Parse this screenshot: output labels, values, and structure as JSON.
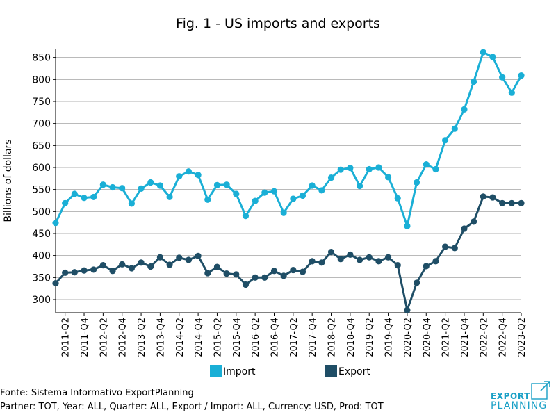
{
  "chart_data": {
    "type": "line",
    "title": "Fig. 1 - US imports and exports",
    "xlabel": "",
    "ylabel": "Billions of dollars",
    "ylim": [
      270,
      870
    ],
    "yticks": [
      300,
      350,
      400,
      450,
      500,
      550,
      600,
      650,
      700,
      750,
      800,
      850
    ],
    "grid": "horizontal",
    "legend_position": "bottom-center",
    "categories": [
      "2011-Q1",
      "2011-Q2",
      "2011-Q3",
      "2011-Q4",
      "2012-Q1",
      "2012-Q2",
      "2012-Q3",
      "2012-Q4",
      "2013-Q1",
      "2013-Q2",
      "2013-Q3",
      "2013-Q4",
      "2014-Q1",
      "2014-Q2",
      "2014-Q3",
      "2014-Q4",
      "2015-Q1",
      "2015-Q2",
      "2015-Q3",
      "2015-Q4",
      "2016-Q1",
      "2016-Q2",
      "2016-Q3",
      "2016-Q4",
      "2017-Q1",
      "2017-Q2",
      "2017-Q3",
      "2017-Q4",
      "2018-Q1",
      "2018-Q2",
      "2018-Q3",
      "2018-Q4",
      "2019-Q1",
      "2019-Q2",
      "2019-Q3",
      "2019-Q4",
      "2020-Q1",
      "2020-Q2",
      "2020-Q3",
      "2020-Q4",
      "2021-Q1",
      "2021-Q2",
      "2021-Q3",
      "2021-Q4",
      "2022-Q1",
      "2022-Q2",
      "2022-Q3",
      "2022-Q4",
      "2023-Q1",
      "2023-Q2"
    ],
    "tick_labels": [
      "2011-Q2",
      "2011-Q4",
      "2012-Q2",
      "2012-Q4",
      "2013-Q2",
      "2013-Q4",
      "2014-Q2",
      "2014-Q4",
      "2015-Q2",
      "2015-Q4",
      "2016-Q2",
      "2016-Q4",
      "2017-Q2",
      "2017-Q4",
      "2018-Q2",
      "2018-Q4",
      "2019-Q2",
      "2019-Q4",
      "2020-Q2",
      "2020-Q4",
      "2021-Q2",
      "2021-Q4",
      "2022-Q2",
      "2022-Q4",
      "2023-Q2"
    ],
    "series": [
      {
        "name": "Import",
        "color": "#1aafd6",
        "values": [
          474,
          519,
          540,
          531,
          533,
          561,
          555,
          553,
          518,
          552,
          566,
          559,
          533,
          580,
          591,
          583,
          527,
          560,
          561,
          540,
          490,
          524,
          543,
          546,
          497,
          529,
          536,
          559,
          548,
          577,
          595,
          599,
          558,
          596,
          600,
          578,
          530,
          467,
          566,
          607,
          596,
          662,
          688,
          732,
          795,
          862,
          851,
          805,
          770,
          809
        ]
      },
      {
        "name": "Export",
        "color": "#1f4e66",
        "values": [
          337,
          361,
          362,
          366,
          368,
          378,
          365,
          380,
          371,
          384,
          375,
          396,
          379,
          395,
          390,
          399,
          360,
          374,
          359,
          357,
          334,
          350,
          350,
          365,
          354,
          367,
          363,
          387,
          384,
          408,
          392,
          402,
          390,
          396,
          387,
          396,
          378,
          276,
          338,
          376,
          387,
          420,
          417,
          461,
          477,
          534,
          532,
          519,
          519,
          519
        ]
      }
    ]
  },
  "footer": {
    "source": "Fonte: Sistema Informativo ExportPlanning",
    "filters": "Partner: TOT, Year: ALL, Quarter: ALL, Export / Import: ALL, Currency: USD, Prod: TOT"
  },
  "logo": {
    "line1": "EXPORT",
    "line2": "PLANNING",
    "color": "#1aa0c6"
  }
}
